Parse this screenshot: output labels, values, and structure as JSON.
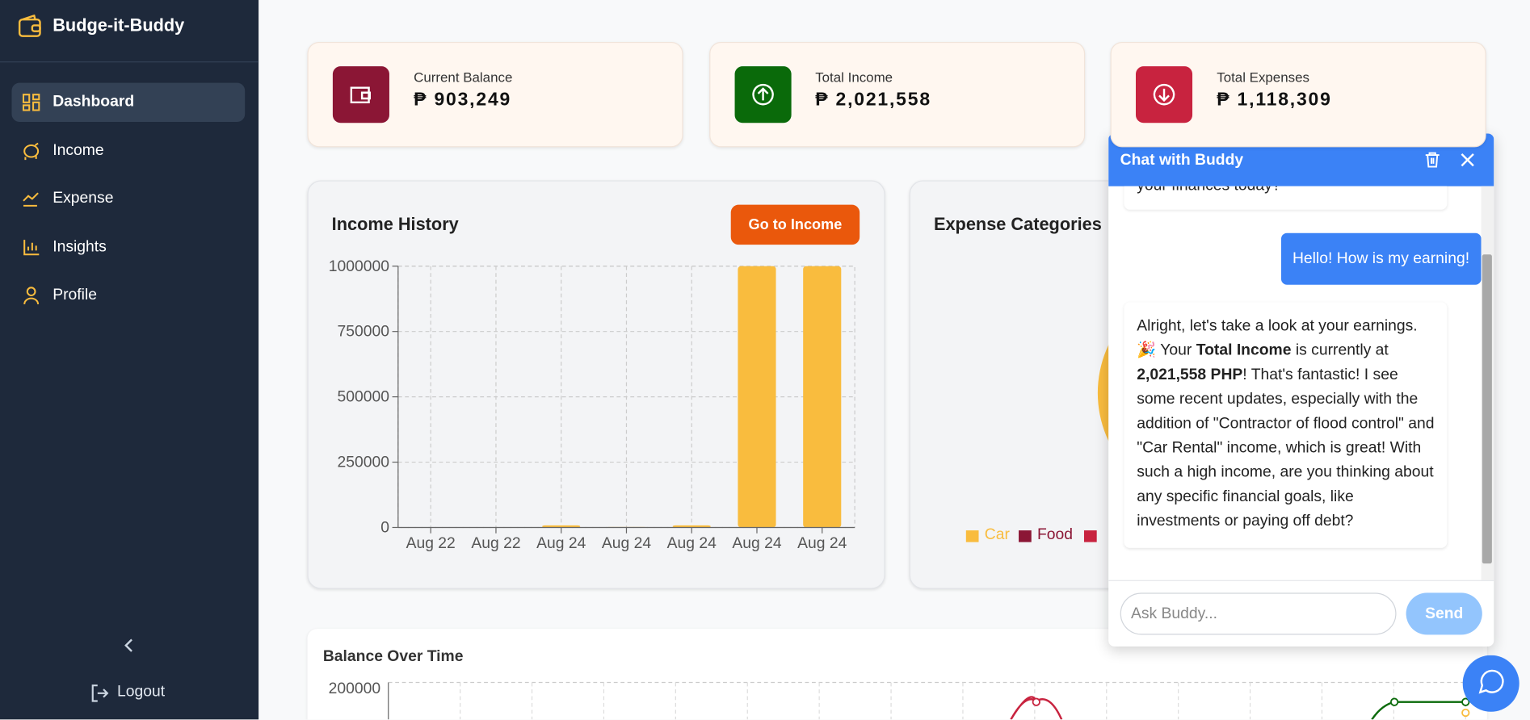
{
  "sidebar": {
    "brand": "Budge-it-Buddy",
    "nav": [
      "Dashboard",
      "Income",
      "Expense",
      "Insights",
      "Profile"
    ],
    "active": 0,
    "logout": "Logout"
  },
  "cards": [
    {
      "label": "Current Balance",
      "value": "₱ 903,249",
      "color": "#8b1635"
    },
    {
      "label": "Total Income",
      "value": "₱ 2,021,558",
      "color": "#0a6a0a"
    },
    {
      "label": "Total Expenses",
      "value": "₱ 1,118,309",
      "color": "#c8233f"
    }
  ],
  "chart_data": {
    "type": "bar",
    "title": "Income History",
    "categories": [
      "Aug 22",
      "Aug 22",
      "Aug 24",
      "Aug 24",
      "Aug 24",
      "Aug 24",
      "Aug 24"
    ],
    "values": [
      0,
      0,
      8000,
      2000,
      8000,
      1000000,
      1000000
    ],
    "color": "#f9bc3e",
    "ylim": [
      0,
      1000000
    ],
    "yticks": [
      0,
      250000,
      500000,
      750000,
      1000000
    ],
    "grid": true
  },
  "income_button": "Go to Income",
  "expense_panel": {
    "title": "Expense Categories",
    "legend": [
      {
        "name": "Car",
        "color": "#f9bc3e"
      },
      {
        "name": "Food",
        "color": "#8b1635"
      }
    ]
  },
  "balance_panel": {
    "title": "Balance Over Time",
    "ytick": 200000
  },
  "chat": {
    "title": "Chat with Buddy",
    "messages": [
      {
        "role": "bot",
        "parts": [
          {
            "text": "your finances today?",
            "bold": false
          }
        ]
      },
      {
        "role": "user",
        "parts": [
          {
            "text": "Hello! How is my earning!",
            "bold": false
          }
        ]
      },
      {
        "role": "bot",
        "parts": [
          {
            "text": "Alright, let's take a look at your earnings. 🎉 Your ",
            "bold": false
          },
          {
            "text": "Total Income",
            "bold": true
          },
          {
            "text": " is currently at ",
            "bold": false
          },
          {
            "text": "2,021,558 PHP",
            "bold": true
          },
          {
            "text": "! That's fantastic! I see some recent updates, especially with the addition of \"Contractor of flood control\" and \"Car Rental\" income, which is great! With such a high income, are you thinking about any specific financial goals, like investments or paying off debt?",
            "bold": false
          }
        ]
      }
    ],
    "placeholder": "Ask Buddy...",
    "send": "Send"
  }
}
